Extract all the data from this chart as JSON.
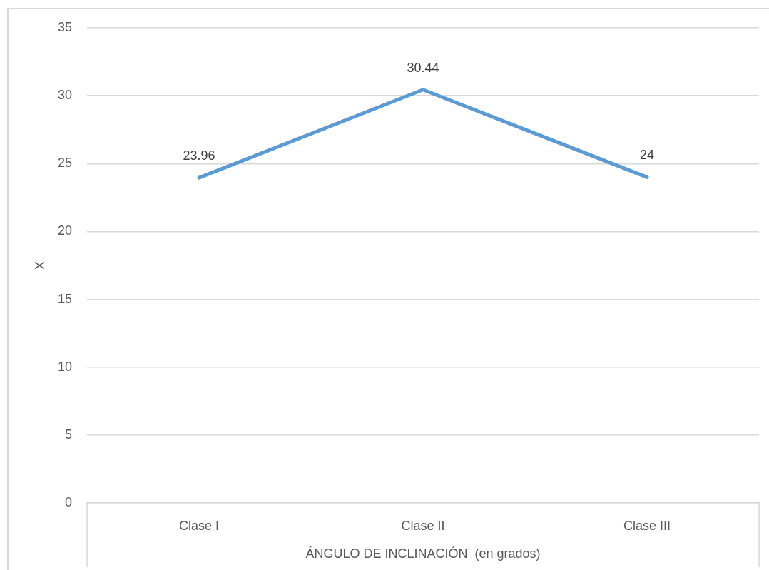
{
  "chart_data": {
    "type": "line",
    "xlabel": "ÁNGULO DE INCLINACIÓN  (en grados)",
    "ylabel": "X",
    "categories": [
      "Clase I",
      "Clase II",
      "Clase III"
    ],
    "series": [
      {
        "color": "#5b9bd5",
        "values": [
          23.96,
          30.44,
          24
        ]
      }
    ],
    "ylim": [
      0,
      35
    ],
    "yticks": [
      0,
      5,
      10,
      15,
      20,
      25,
      30,
      35
    ],
    "grid": "y",
    "legend": false,
    "data_labels": true,
    "marker": "none"
  }
}
